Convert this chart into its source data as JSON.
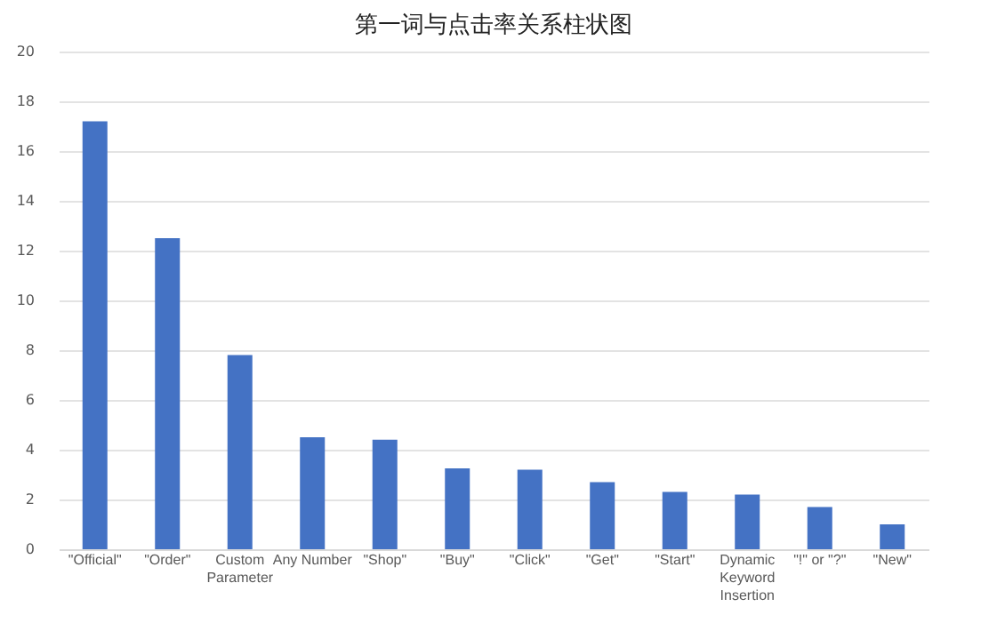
{
  "chart_data": {
    "type": "bar",
    "title": "第一词与点击率关系柱状图",
    "categories": [
      "\"Official\"",
      "\"Order\"",
      "Custom Parameter",
      "Any Number",
      "\"Shop\"",
      "\"Buy\"",
      "\"Click\"",
      "\"Get\"",
      "\"Start\"",
      "Dynamic Keyword Insertion",
      "\"!\" or \"?\"",
      "\"New\""
    ],
    "values": [
      17.2,
      12.5,
      7.8,
      4.5,
      4.4,
      3.25,
      3.2,
      2.7,
      2.3,
      2.2,
      1.7,
      1.0
    ],
    "color": "#4472c4",
    "ylim": [
      0,
      20
    ],
    "yticks": [
      0,
      2,
      4,
      6,
      8,
      10,
      12,
      14,
      16,
      18,
      20
    ],
    "grid": "y"
  }
}
